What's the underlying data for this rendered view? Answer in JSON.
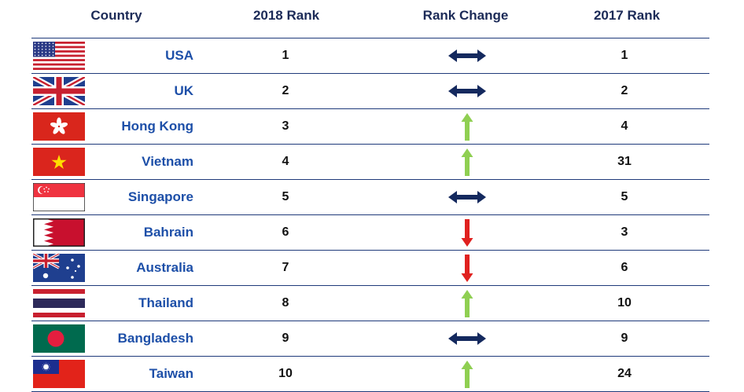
{
  "headers": {
    "country": "Country",
    "rank_2018": "2018 Rank",
    "rank_change": "Rank Change",
    "rank_2017": "2017 Rank"
  },
  "colors": {
    "header_text": "#1b2a57",
    "country_text": "#1d4fa8",
    "rule": "#1f3a7a",
    "same": "#14295e",
    "up": "#8fcf52",
    "down": "#e0211f"
  },
  "rows": [
    {
      "country": "USA",
      "flag": "usa-flag-icon",
      "rank_2018": "1",
      "change": "same",
      "rank_2017": "1"
    },
    {
      "country": "UK",
      "flag": "uk-flag-icon",
      "rank_2018": "2",
      "change": "same",
      "rank_2017": "2"
    },
    {
      "country": "Hong Kong",
      "flag": "hong-kong-flag-icon",
      "rank_2018": "3",
      "change": "up",
      "rank_2017": "4"
    },
    {
      "country": "Vietnam",
      "flag": "vietnam-flag-icon",
      "rank_2018": "4",
      "change": "up",
      "rank_2017": "31"
    },
    {
      "country": "Singapore",
      "flag": "singapore-flag-icon",
      "rank_2018": "5",
      "change": "same",
      "rank_2017": "5"
    },
    {
      "country": "Bahrain",
      "flag": "bahrain-flag-icon",
      "rank_2018": "6",
      "change": "down",
      "rank_2017": "3"
    },
    {
      "country": "Australia",
      "flag": "australia-flag-icon",
      "rank_2018": "7",
      "change": "down",
      "rank_2017": "6"
    },
    {
      "country": "Thailand",
      "flag": "thailand-flag-icon",
      "rank_2018": "8",
      "change": "up",
      "rank_2017": "10"
    },
    {
      "country": "Bangladesh",
      "flag": "bangladesh-flag-icon",
      "rank_2018": "9",
      "change": "same",
      "rank_2017": "9"
    },
    {
      "country": "Taiwan",
      "flag": "taiwan-flag-icon",
      "rank_2018": "10",
      "change": "up",
      "rank_2017": "24"
    }
  ]
}
